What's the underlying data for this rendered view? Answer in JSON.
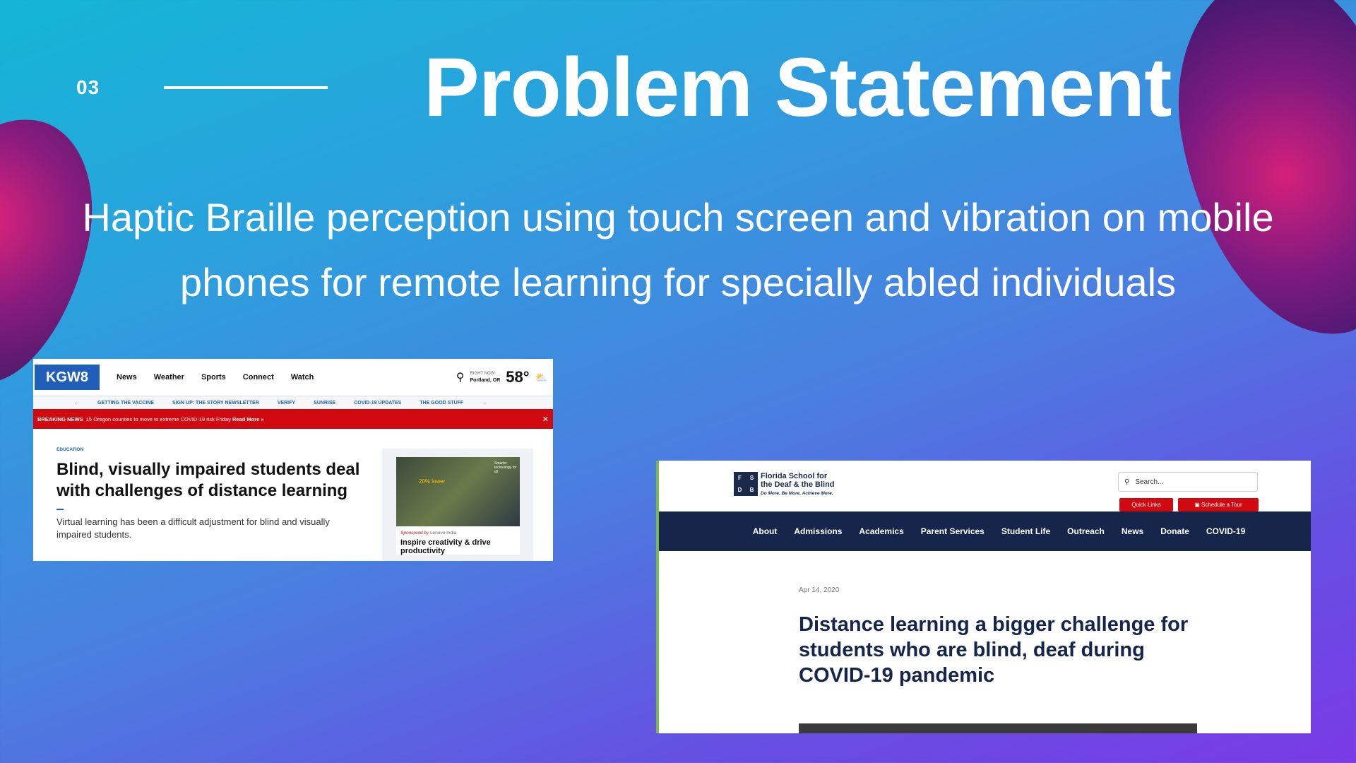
{
  "slide": {
    "number": "03",
    "title": "Problem Statement",
    "subtitle": "Haptic Braille perception using touch screen and vibration on mobile phones for remote learning for specially abled individuals"
  },
  "screenshot1": {
    "logo": "KGW8",
    "nav": [
      "News",
      "Weather",
      "Sports",
      "Connect",
      "Watch"
    ],
    "weather": {
      "label": "RIGHT NOW",
      "location": "Portland, OR",
      "temp": "58°"
    },
    "subnav": [
      "GETTING THE VACCINE",
      "SIGN UP: THE STORY NEWSLETTER",
      "VERIFY",
      "SUNRISE",
      "COVID-19 UPDATES",
      "THE GOOD STUFF"
    ],
    "breaking": {
      "label": "BREAKING NEWS",
      "text": "15 Oregon counties to move to extreme COVID-19 risk Friday",
      "link": "Read More »"
    },
    "article": {
      "category": "EDUCATION",
      "headline": "Blind, visually impaired students deal with challenges of distance learning",
      "description": "Virtual learning has been a difficult adjustment for blind and visually impaired students."
    },
    "ad": {
      "image_label": "20% lower",
      "image_tag": "Smarter technology for all",
      "sponsored": "Sponsored by",
      "sponsor": "Lenovo India",
      "title": "Inspire creativity & drive productivity"
    }
  },
  "screenshot2": {
    "logo_letters": [
      "F",
      "S",
      "D",
      "B"
    ],
    "school_name_line1": "Florida School for",
    "school_name_line2": "the Deaf & the Blind",
    "tagline": "Do More. Be More. Achieve More.",
    "search_placeholder": "Search...",
    "quick_links": "Quick Links",
    "schedule_tour": "Schedule a Tour",
    "nav": [
      "About",
      "Admissions",
      "Academics",
      "Parent Services",
      "Student Life",
      "Outreach",
      "News",
      "Donate",
      "COVID-19"
    ],
    "date": "Apr 14, 2020",
    "headline": "Distance learning a bigger challenge for students who are blind, deaf during COVID-19 pandemic"
  }
}
